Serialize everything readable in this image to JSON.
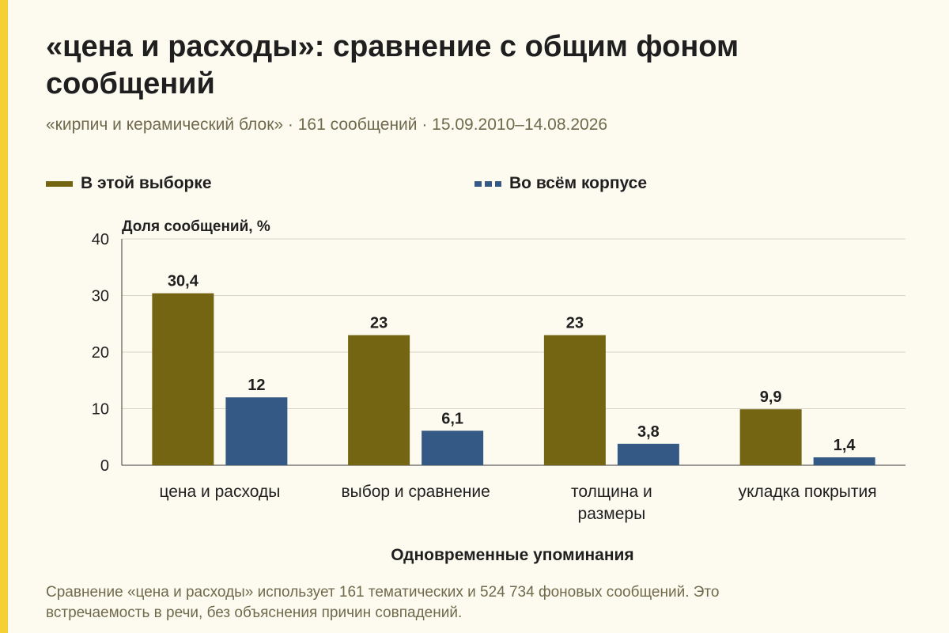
{
  "header": {
    "title_lines": [
      "«цена и расходы»: сравнение с общим фоном",
      "сообщений"
    ],
    "subtitle": "«кирпич и керамический блок» · 161 сообщений · 15.09.2010–14.08.2026"
  },
  "footer": {
    "note_lines": [
      "Сравнение «цена и расходы» использует 161 тематических и 524 734 фоновых сообщений. Это",
      "встречаемость в речи, без объяснения причин совпадений."
    ]
  },
  "colors": {
    "sample": "#736511",
    "corpus": "#355985",
    "accent_strip": "#f5d033",
    "background": "#fdfbf0"
  },
  "chart_data": {
    "type": "bar",
    "ylabel": "Доля сообщений, %",
    "xlabel": "Одновременные упоминания",
    "ylim": [
      0,
      40
    ],
    "yticks": [
      0,
      10,
      20,
      30,
      40
    ],
    "grid": true,
    "legend_position": "top",
    "categories": [
      [
        "цена и расходы"
      ],
      [
        "выбор и сравнение"
      ],
      [
        "толщина и",
        "размеры"
      ],
      [
        "укладка покрытия"
      ]
    ],
    "series": [
      {
        "name": "В этой выборке",
        "values": [
          30.4,
          23,
          23,
          9.9
        ],
        "labels": [
          "30,4",
          "23",
          "23",
          "9,9"
        ]
      },
      {
        "name": "Во всём корпусе",
        "values": [
          12,
          6.1,
          3.8,
          1.4
        ],
        "labels": [
          "12",
          "6,1",
          "3,8",
          "1,4"
        ]
      }
    ]
  }
}
